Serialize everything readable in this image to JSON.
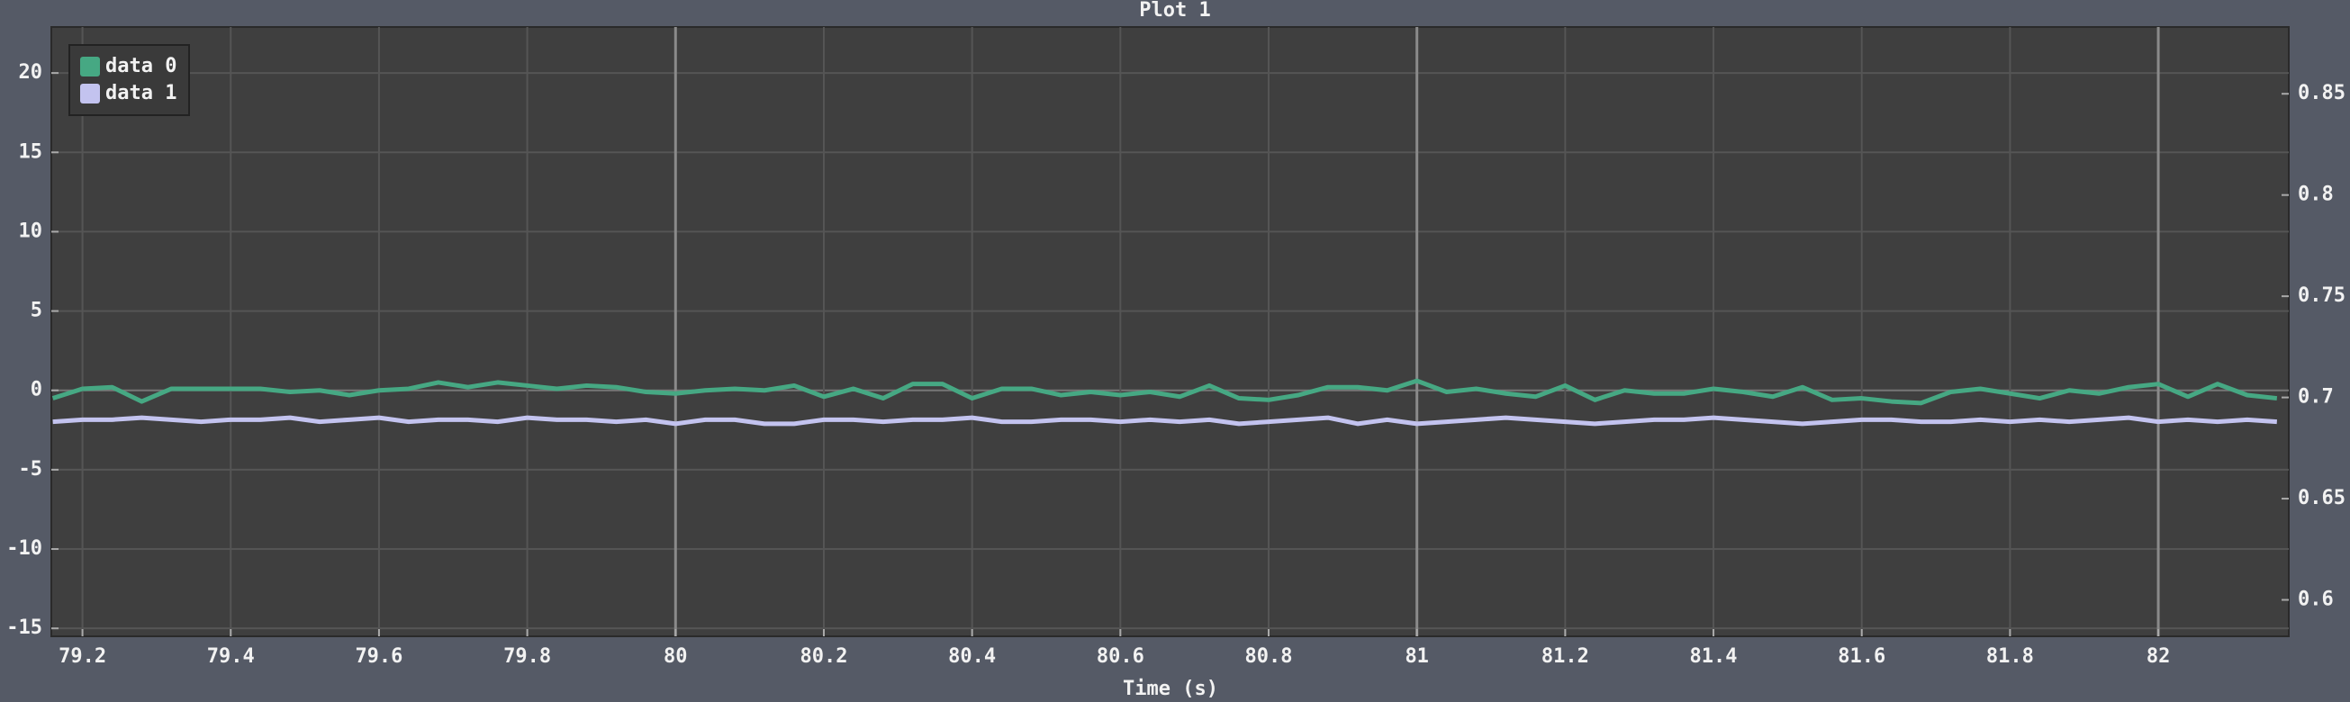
{
  "chart_data": {
    "type": "line",
    "title": "Plot 1",
    "x_label": "Time (s)",
    "x": [
      79.16,
      79.2,
      79.24,
      79.28,
      79.32,
      79.36,
      79.4,
      79.44,
      79.48,
      79.52,
      79.56,
      79.6,
      79.64,
      79.68,
      79.72,
      79.76,
      79.8,
      79.84,
      79.88,
      79.92,
      79.96,
      80,
      80.04,
      80.08,
      80.12,
      80.16,
      80.2,
      80.24,
      80.28,
      80.32,
      80.36,
      80.4,
      80.44,
      80.48,
      80.52,
      80.56,
      80.6,
      80.64,
      80.68,
      80.72,
      80.76,
      80.8,
      80.84,
      80.88,
      80.92,
      80.96,
      81,
      81.04,
      81.08,
      81.12,
      81.16,
      81.2,
      81.24,
      81.28,
      81.32,
      81.36,
      81.4,
      81.44,
      81.48,
      81.52,
      81.56,
      81.6,
      81.64,
      81.68,
      81.72,
      81.76,
      81.8,
      81.84,
      81.88,
      81.92,
      81.96,
      82,
      82.04,
      82.08,
      82.12,
      82.16
    ],
    "series": [
      {
        "name": "data 0",
        "color": "#46a883",
        "values": [
          -0.5,
          0.1,
          0.2,
          -0.7,
          0.1,
          0.1,
          0.1,
          0.1,
          -0.1,
          0,
          -0.3,
          0,
          0.1,
          0.5,
          0.2,
          0.5,
          0.3,
          0.1,
          0.3,
          0.2,
          -0.1,
          -0.2,
          0,
          0.1,
          0,
          0.3,
          -0.4,
          0.1,
          -0.5,
          0.4,
          0.4,
          -0.5,
          0.1,
          0.1,
          -0.3,
          -0.1,
          -0.3,
          -0.1,
          -0.4,
          0.3,
          -0.5,
          -0.6,
          -0.3,
          0.2,
          0.2,
          0,
          0.6,
          -0.1,
          0.1,
          -0.2,
          -0.4,
          0.3,
          -0.6,
          0,
          -0.2,
          -0.2,
          0.1,
          -0.1,
          -0.4,
          0.2,
          -0.6,
          -0.5,
          -0.7,
          -0.8,
          -0.1,
          0.1,
          -0.2,
          -0.5,
          0,
          -0.2,
          0.2,
          0.4,
          -0.4,
          0.4,
          -0.3,
          -0.5
        ]
      },
      {
        "name": "data 1",
        "color": "#c3c3ef",
        "axis": "y2",
        "values": [
          0.688,
          0.689,
          0.689,
          0.69,
          0.689,
          0.688,
          0.689,
          0.689,
          0.69,
          0.688,
          0.689,
          0.69,
          0.688,
          0.689,
          0.689,
          0.688,
          0.69,
          0.689,
          0.689,
          0.688,
          0.689,
          0.687,
          0.689,
          0.689,
          0.687,
          0.687,
          0.689,
          0.689,
          0.688,
          0.689,
          0.689,
          0.69,
          0.688,
          0.688,
          0.689,
          0.689,
          0.688,
          0.689,
          0.688,
          0.689,
          0.687,
          0.688,
          0.689,
          0.69,
          0.687,
          0.689,
          0.687,
          0.688,
          0.689,
          0.69,
          0.689,
          0.688,
          0.687,
          0.688,
          0.689,
          0.689,
          0.69,
          0.689,
          0.688,
          0.687,
          0.688,
          0.689,
          0.689,
          0.688,
          0.688,
          0.689,
          0.688,
          0.689,
          0.688,
          0.689,
          0.69,
          0.688,
          0.689,
          0.688,
          0.689,
          0.688
        ]
      }
    ],
    "xlim": [
      79.158,
      82.176
    ],
    "xticks": [
      79.2,
      79.4,
      79.6,
      79.8,
      80,
      80.2,
      80.4,
      80.6,
      80.8,
      81,
      81.2,
      81.4,
      81.6,
      81.8,
      82
    ],
    "ylim": [
      -15.5,
      22.9
    ],
    "yticks": [
      -15,
      -10,
      -5,
      0,
      5,
      10,
      15,
      20
    ],
    "y2lim": [
      0.582,
      0.883
    ],
    "y2ticks": [
      0.6,
      0.65,
      0.7,
      0.75,
      0.8,
      0.85
    ],
    "grid": true,
    "legend": "upper left"
  }
}
